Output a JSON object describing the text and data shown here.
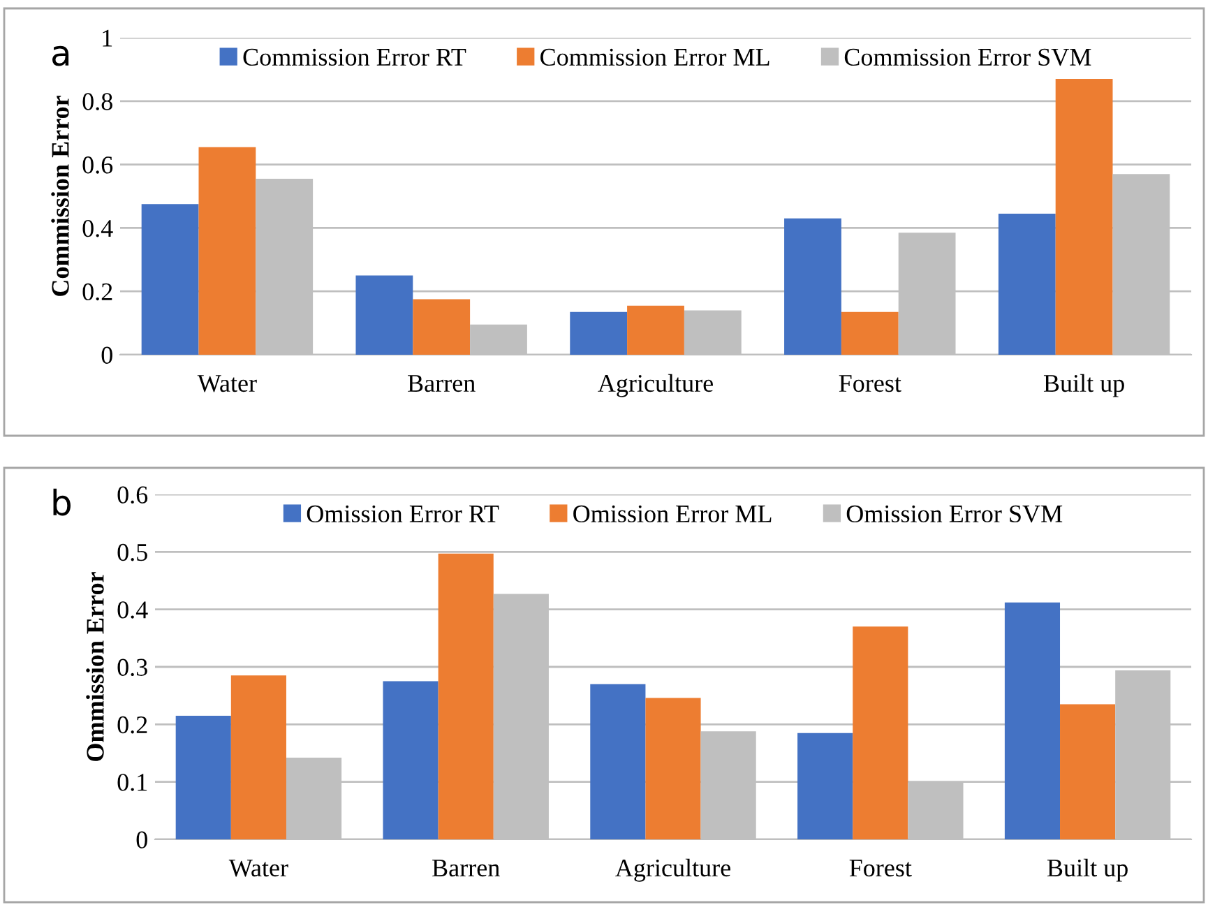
{
  "chart_data": [
    {
      "type": "bar",
      "categories": [
        "Water",
        "Barren",
        "Agriculture",
        "Forest",
        "Built up"
      ],
      "ylabel": "Commission Error",
      "annotations": [
        "a"
      ],
      "ylim": [
        0,
        1
      ],
      "yticks": [
        0,
        0.2,
        0.4,
        0.6,
        0.8,
        1
      ],
      "grid": "y",
      "legend": "top",
      "series": [
        {
          "name": "Commission Error RT",
          "color": "#4472c4",
          "values": [
            0.475,
            0.25,
            0.135,
            0.43,
            0.445
          ]
        },
        {
          "name": "Commission Error ML",
          "color": "#ed7d31",
          "values": [
            0.655,
            0.175,
            0.155,
            0.135,
            0.87
          ]
        },
        {
          "name": "Commission Error SVM",
          "color": "#bfbfbf",
          "values": [
            0.555,
            0.095,
            0.14,
            0.385,
            0.57
          ]
        }
      ]
    },
    {
      "type": "bar",
      "categories": [
        "Water",
        "Barren",
        "Agriculture",
        "Forest",
        "Built up"
      ],
      "ylabel": "Ommission Error",
      "annotations": [
        "b"
      ],
      "ylim": [
        0,
        0.6
      ],
      "yticks": [
        0,
        0.1,
        0.2,
        0.3,
        0.4,
        0.5,
        0.6
      ],
      "grid": "y",
      "legend": "top",
      "series": [
        {
          "name": "Omission Error RT",
          "color": "#4472c4",
          "values": [
            0.215,
            0.275,
            0.27,
            0.185,
            0.412
          ]
        },
        {
          "name": "Omission Error ML",
          "color": "#ed7d31",
          "values": [
            0.285,
            0.497,
            0.246,
            0.37,
            0.235
          ]
        },
        {
          "name": "Omission Error SVM",
          "color": "#bfbfbf",
          "values": [
            0.142,
            0.427,
            0.188,
            0.1,
            0.294
          ]
        }
      ]
    }
  ]
}
